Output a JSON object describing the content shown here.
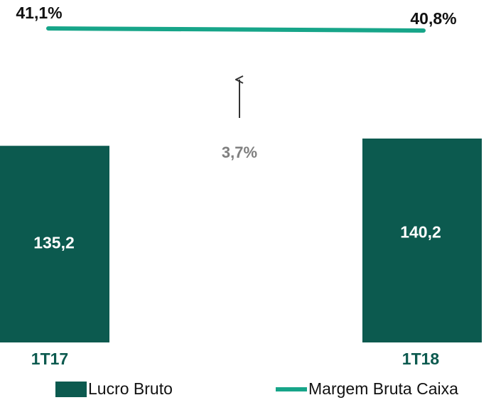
{
  "chart_data": {
    "type": "bar",
    "categories": [
      "1T17",
      "1T18"
    ],
    "series": [
      {
        "name": "Lucro Bruto",
        "type": "bar",
        "color": "#0c5a4f",
        "values": [
          135.2,
          140.2
        ],
        "value_labels": [
          "135,2",
          "140,2"
        ]
      },
      {
        "name": "Margem Bruta Caixa",
        "type": "line",
        "axis": "y2",
        "color": "#17a589",
        "values": [
          41.1,
          40.8
        ],
        "value_labels": [
          "41,1%",
          "40,8%"
        ]
      }
    ],
    "annotations": [
      {
        "text": "3,7%"
      }
    ]
  }
}
